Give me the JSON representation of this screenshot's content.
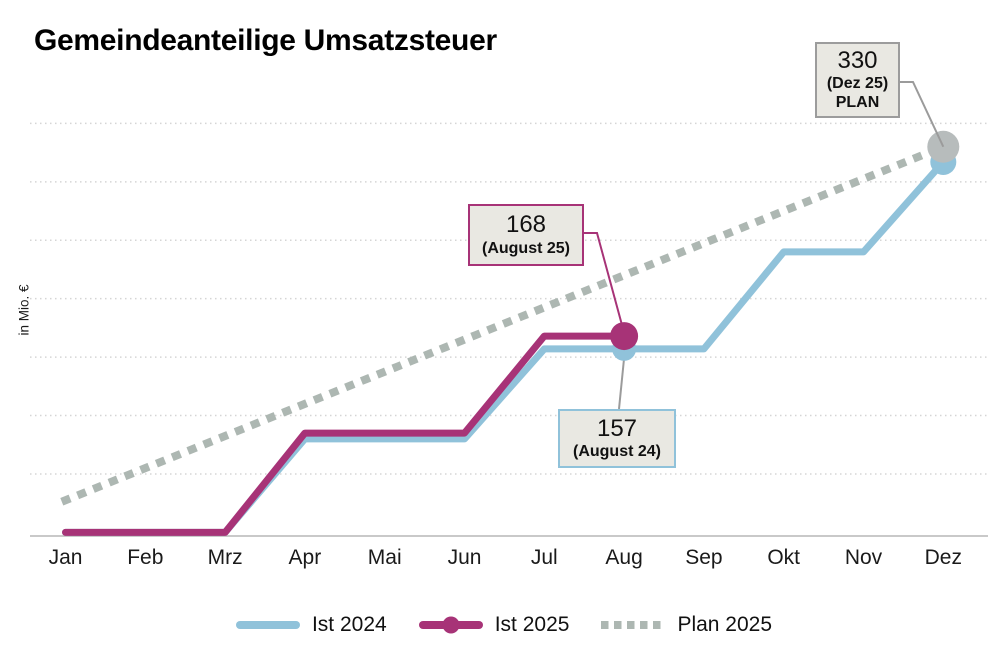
{
  "chart": {
    "title": "Gemeindeanteilige Umsatzsteuer",
    "y_axis_label": "in Mio. €"
  },
  "annotations": {
    "plan_dez": {
      "value": "330",
      "label": "(Dez 25)",
      "label2": "PLAN"
    },
    "ist_2025_aug": {
      "value": "168",
      "label": "(August 25)"
    },
    "ist_2024_aug": {
      "value": "157",
      "label": "(August 24)"
    }
  },
  "colors": {
    "ist_2024": "#90c2da",
    "ist_2025": "#a73377",
    "plan_2025": "#adb7b2",
    "plan_marker": "#b7bcbc",
    "annotation_fill": "#e9e8e2",
    "annotation_border_gray": "#9c9c9c",
    "gridline": "#d5d5d5",
    "axis_line": "#c9c9c9",
    "connector_gray": "#9b9b9b"
  },
  "chart_data": {
    "type": "line",
    "title": "Gemeindeanteilige Umsatzsteuer",
    "xlabel": "",
    "ylabel": "in Mio. €",
    "categories": [
      "Jan",
      "Feb",
      "Mrz",
      "Apr",
      "Mai",
      "Jun",
      "Jul",
      "Aug",
      "Sep",
      "Okt",
      "Nov",
      "Dez"
    ],
    "series": [
      {
        "name": "Ist 2024",
        "color": "#90c2da",
        "style": "solid",
        "legend_marker": false,
        "values": [
          0,
          0,
          0,
          80,
          80,
          80,
          157,
          157,
          157,
          240,
          240,
          317
        ]
      },
      {
        "name": "Ist 2025",
        "color": "#a73377",
        "style": "solid",
        "legend_marker": true,
        "values": [
          0,
          0,
          0,
          85,
          85,
          85,
          168,
          168,
          null,
          null,
          null,
          null
        ]
      },
      {
        "name": "Plan 2025",
        "color": "#adb7b2",
        "style": "dotted",
        "legend_marker": false,
        "values": [
          27.5,
          55,
          82.5,
          110,
          137.5,
          165,
          192.5,
          220,
          247.5,
          275,
          302.5,
          330
        ]
      }
    ],
    "markers": [
      {
        "series": "Ist 2024",
        "category": "Aug",
        "value": 157,
        "radius": 12,
        "color": "#90c2da"
      },
      {
        "series": "Ist 2025",
        "category": "Aug",
        "value": 168,
        "radius": 14,
        "color": "#a73377"
      },
      {
        "series": "Ist 2024",
        "category": "Dez",
        "value": 317,
        "radius": 13,
        "color": "#90c2da"
      },
      {
        "series": "Plan 2025",
        "category": "Dez",
        "value": 330,
        "radius": 16,
        "color": "#b7bcbc"
      }
    ],
    "ylim": [
      0,
      370
    ],
    "grid": true,
    "gridlines_every": 50,
    "legend_position": "bottom"
  }
}
